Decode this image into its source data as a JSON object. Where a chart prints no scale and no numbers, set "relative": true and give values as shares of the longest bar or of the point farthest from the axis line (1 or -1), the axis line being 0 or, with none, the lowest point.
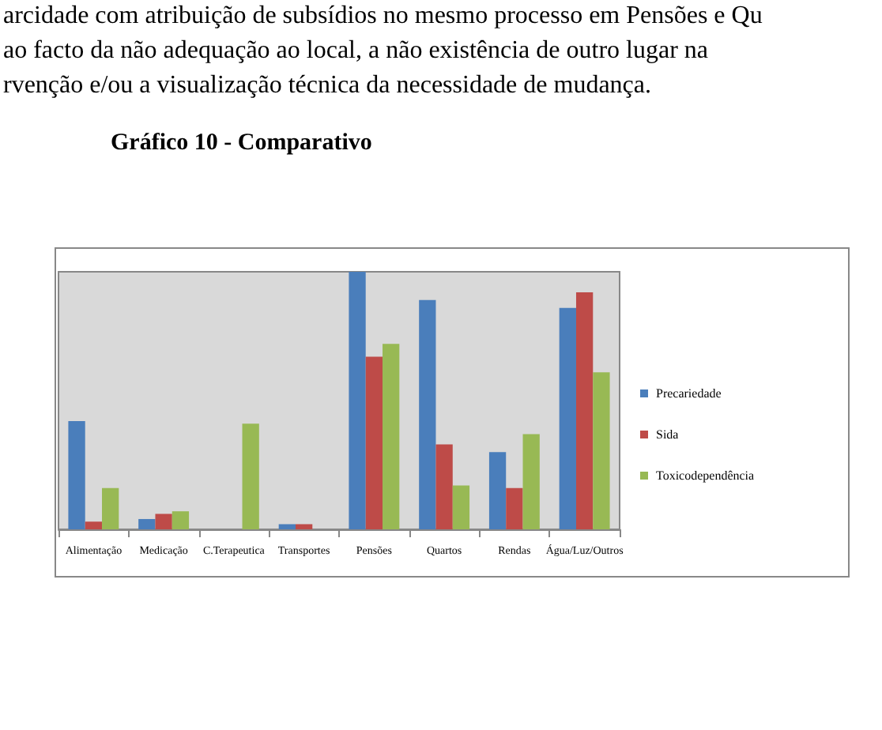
{
  "chart_data": {
    "type": "bar",
    "title": "Gráfico 10 - Comparativo",
    "annotations": [
      "arcidade com atribuição de subsídios no mesmo processo em Pensões e Qu",
      "ao facto da não adequação ao local, a não existência de outro lugar na",
      "rvenção e/ou a visualização técnica da necessidade de mudança."
    ],
    "relative": true,
    "legend": "right",
    "categories": [
      "Alimentação",
      "Medicação",
      "C.Terapeutica",
      "Transportes",
      "Pensões",
      "Quartos",
      "Rendas",
      "Água/Luz/Outros"
    ],
    "series": [
      {
        "name": "Precariedade",
        "color": "#4a7ebb",
        "values": [
          0.42,
          0.04,
          0,
          0.02,
          1,
          0.89,
          0.3,
          0.86
        ]
      },
      {
        "name": "Sida",
        "color": "#be4b48",
        "values": [
          0.03,
          0.06,
          0,
          0.02,
          0.67,
          0.33,
          0.16,
          0.92
        ]
      },
      {
        "name": "Toxicodependência",
        "color": "#98b954",
        "values": [
          0.16,
          0.07,
          0.41,
          0,
          0.72,
          0.17,
          0.37,
          0.61
        ]
      }
    ]
  }
}
